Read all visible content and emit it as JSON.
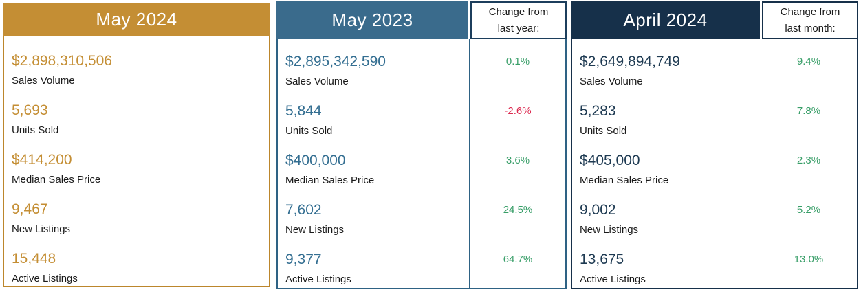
{
  "colors": {
    "gold": "#C48E34",
    "steel_blue": "#3A6B8C",
    "navy": "#16304A",
    "value_blue": "#336E91",
    "value_navy": "#1E3A52",
    "positive_green": "#389E68",
    "negative_red": "#DC2A50",
    "label_text": "#1A1A1A"
  },
  "panels": [
    {
      "title": "May 2024",
      "metrics": [
        {
          "value": "$2,898,310,506",
          "label": "Sales Volume"
        },
        {
          "value": "5,693",
          "label": "Units Sold"
        },
        {
          "value": "$414,200",
          "label": "Median Sales Price"
        },
        {
          "value": "9,467",
          "label": "New Listings"
        },
        {
          "value": "15,448",
          "label": "Active Listings"
        }
      ]
    },
    {
      "title": "May 2023",
      "change_header": {
        "line1": "Change from",
        "line2": "last year:"
      },
      "metrics": [
        {
          "value": "$2,895,342,590",
          "label": "Sales Volume",
          "change": "0.1%"
        },
        {
          "value": "5,844",
          "label": "Units Sold",
          "change": "-2.6%"
        },
        {
          "value": "$400,000",
          "label": "Median Sales Price",
          "change": "3.6%"
        },
        {
          "value": "7,602",
          "label": "New Listings",
          "change": "24.5%"
        },
        {
          "value": "9,377",
          "label": "Active Listings",
          "change": "64.7%"
        }
      ]
    },
    {
      "title": "April 2024",
      "change_header": {
        "line1": "Change from",
        "line2": "last month:"
      },
      "metrics": [
        {
          "value": "$2,649,894,749",
          "label": "Sales Volume",
          "change": "9.4%"
        },
        {
          "value": "5,283",
          "label": "Units Sold",
          "change": "7.8%"
        },
        {
          "value": "$405,000",
          "label": "Median Sales Price",
          "change": "2.3%"
        },
        {
          "value": "9,002",
          "label": "New Listings",
          "change": "5.2%"
        },
        {
          "value": "13,675",
          "label": "Active Listings",
          "change": "13.0%"
        }
      ]
    }
  ],
  "chart_data": {
    "type": "table",
    "title": "Monthly real estate market comparison",
    "row_labels": [
      "Sales Volume",
      "Units Sold",
      "Median Sales Price",
      "New Listings",
      "Active Listings"
    ],
    "columns": [
      {
        "name": "May 2024",
        "values": [
          "$2,898,310,506",
          "5,693",
          "$414,200",
          "9,467",
          "15,448"
        ]
      },
      {
        "name": "May 2023",
        "values": [
          "$2,895,342,590",
          "5,844",
          "$400,000",
          "7,602",
          "9,377"
        ],
        "change_from_last_year": [
          "0.1%",
          "-2.6%",
          "3.6%",
          "24.5%",
          "64.7%"
        ]
      },
      {
        "name": "April 2024",
        "values": [
          "$2,649,894,749",
          "5,283",
          "$405,000",
          "9,002",
          "13,675"
        ],
        "change_from_last_month": [
          "9.4%",
          "7.8%",
          "2.3%",
          "5.2%",
          "13.0%"
        ]
      }
    ]
  }
}
